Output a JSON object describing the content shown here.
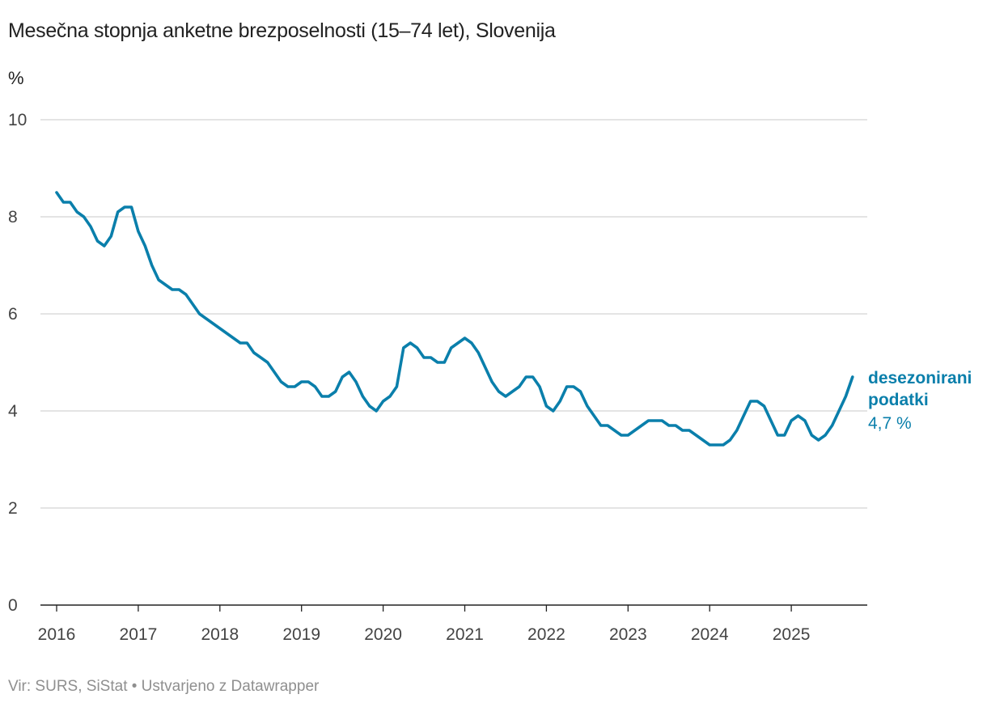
{
  "title": "Mesečna stopnja anketne brezposelnosti (15–74 let), Slovenija",
  "unit": "%",
  "footer": "Vir: SURS, SiStat • Ustvarjeno z Datawrapper",
  "colors": {
    "line": "#0a7fab",
    "grid": "#d4d4d4",
    "axis": "#222222"
  },
  "chart_data": {
    "type": "line",
    "title": "Mesečna stopnja anketne brezposelnosti (15–74 let), Slovenija",
    "ylabel": "%",
    "ylim": [
      0,
      10
    ],
    "y_ticks": [
      "0",
      "2",
      "4",
      "6",
      "8",
      "10"
    ],
    "x_ticks": [
      "2016",
      "2017",
      "2018",
      "2019",
      "2020",
      "2021",
      "2022",
      "2023",
      "2024",
      "2025"
    ],
    "x_start": "2016-01",
    "grid": true,
    "series": [
      {
        "name": "desezonirani podatki",
        "end_label": "4,7 %",
        "values": [
          8.5,
          8.3,
          8.3,
          8.1,
          8.0,
          7.8,
          7.5,
          7.4,
          7.6,
          8.1,
          8.2,
          8.2,
          7.7,
          7.4,
          7.0,
          6.7,
          6.6,
          6.5,
          6.5,
          6.4,
          6.2,
          6.0,
          5.9,
          5.8,
          5.7,
          5.6,
          5.5,
          5.4,
          5.4,
          5.2,
          5.1,
          5.0,
          4.8,
          4.6,
          4.5,
          4.5,
          4.6,
          4.6,
          4.5,
          4.3,
          4.3,
          4.4,
          4.7,
          4.8,
          4.6,
          4.3,
          4.1,
          4.0,
          4.2,
          4.3,
          4.5,
          5.3,
          5.4,
          5.3,
          5.1,
          5.1,
          5.0,
          5.0,
          5.3,
          5.4,
          5.5,
          5.4,
          5.2,
          4.9,
          4.6,
          4.4,
          4.3,
          4.4,
          4.5,
          4.7,
          4.7,
          4.5,
          4.1,
          4.0,
          4.2,
          4.5,
          4.5,
          4.4,
          4.1,
          3.9,
          3.7,
          3.7,
          3.6,
          3.5,
          3.5,
          3.6,
          3.7,
          3.8,
          3.8,
          3.8,
          3.7,
          3.7,
          3.6,
          3.6,
          3.5,
          3.4,
          3.3,
          3.3,
          3.3,
          3.4,
          3.6,
          3.9,
          4.2,
          4.2,
          4.1,
          3.8,
          3.5,
          3.5,
          3.8,
          3.9,
          3.8,
          3.5,
          3.4,
          3.5,
          3.7,
          4.0,
          4.3,
          4.7
        ]
      }
    ]
  }
}
